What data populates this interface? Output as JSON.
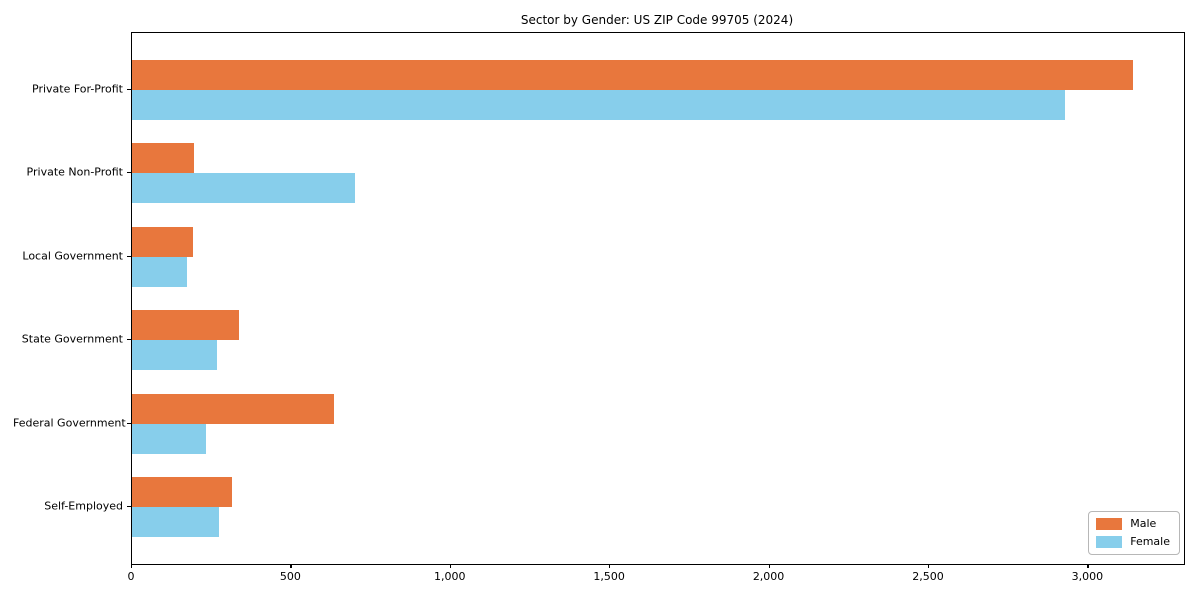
{
  "chart_data": {
    "type": "bar",
    "orientation": "horizontal",
    "title": "Sector by Gender: US ZIP Code 99705 (2024)",
    "categories": [
      "Private For-Profit",
      "Private Non-Profit",
      "Local Government",
      "State Government",
      "Federal Government",
      "Self-Employed"
    ],
    "series": [
      {
        "name": "Male",
        "color": "#e8773d",
        "values": [
          3140,
          193,
          190,
          336,
          633,
          315
        ]
      },
      {
        "name": "Female",
        "color": "#87ceeb",
        "values": [
          2928,
          700,
          172,
          266,
          232,
          272
        ]
      }
    ],
    "xlabel": "",
    "ylabel": "",
    "xlim": [
      0,
      3300
    ],
    "xticks": [
      0,
      500,
      1000,
      1500,
      2000,
      2500,
      3000
    ],
    "xtick_labels": [
      "0",
      "500",
      "1,000",
      "1,500",
      "2,000",
      "2,500",
      "3,000"
    ],
    "grid": false,
    "legend_position": "lower right",
    "frame": "full-box"
  }
}
